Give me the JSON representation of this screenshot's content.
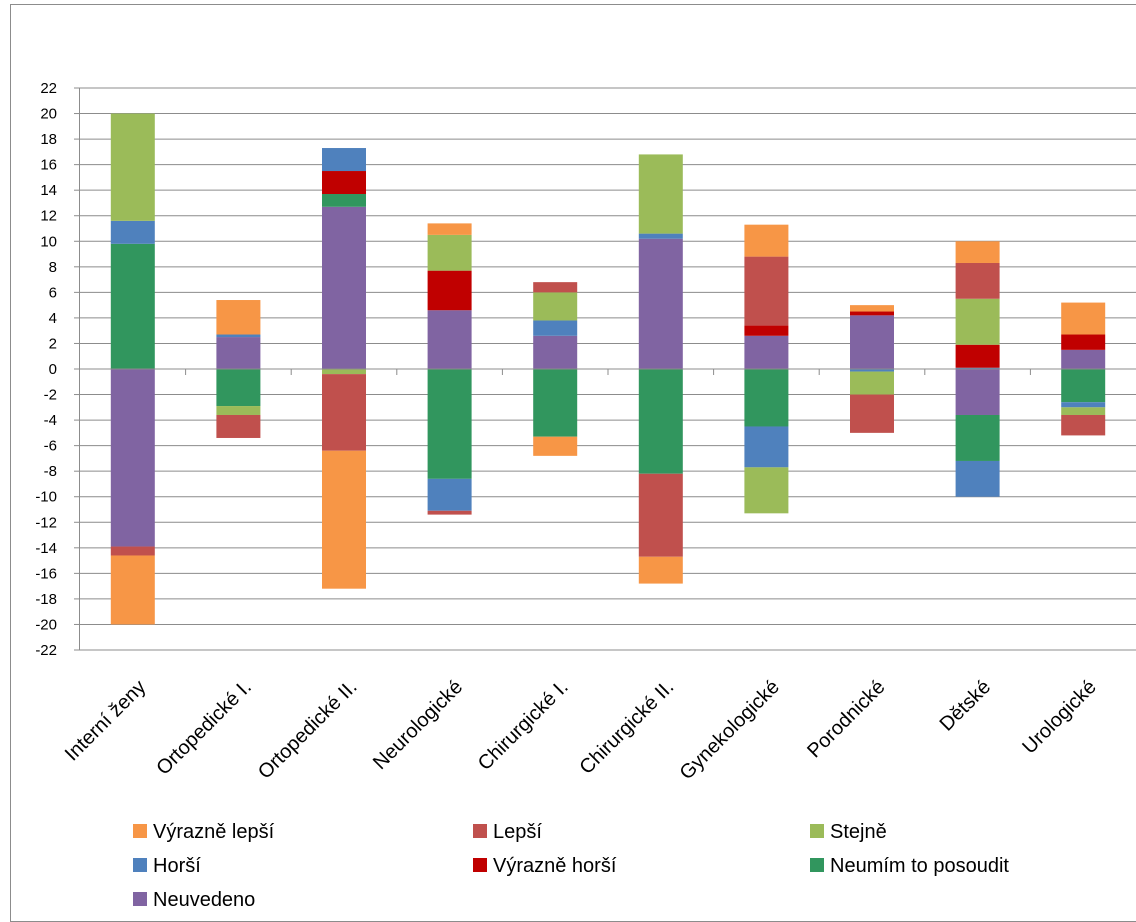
{
  "chart_data": {
    "type": "bar",
    "stacked": true,
    "diverging": true,
    "categories": [
      "Interní ženy",
      "Ortopedické I.",
      "Ortopedické II.",
      "Neurologické",
      "Chirurgické I.",
      "Chirurgické II.",
      "Gynekologické",
      "Porodnické",
      "Dětské",
      "Urologické"
    ],
    "ylim": [
      -22,
      22
    ],
    "yticks": [
      "22",
      "20",
      "18",
      "16",
      "14",
      "12",
      "10",
      "8",
      "6",
      "4",
      "2",
      "0",
      "-2",
      "-4",
      "-6",
      "-8",
      "-10",
      "-12",
      "-14",
      "-16",
      "-18",
      "-20",
      "-22"
    ],
    "grid": true,
    "legend_position": "bottom",
    "series": [
      {
        "name": "Výrazně lepší",
        "color": "#F79646"
      },
      {
        "name": "Lepší",
        "color": "#C0504D"
      },
      {
        "name": "Stejně",
        "color": "#9BBB59"
      },
      {
        "name": "Horší",
        "color": "#4F81BD"
      },
      {
        "name": "Výrazně horší",
        "color": "#C00000"
      },
      {
        "name": "Neumím to posoudit",
        "color": "#31965E"
      },
      {
        "name": "Neuvedeno",
        "color": "#8064A2"
      }
    ],
    "bars": [
      {
        "positive": [
          [
            "Neumím to posoudit",
            9.8
          ],
          [
            "Horší",
            1.8
          ],
          [
            "Stejně",
            8.4
          ]
        ],
        "negative": [
          [
            "Neuvedeno",
            13.9
          ],
          [
            "Lepší",
            0.7
          ],
          [
            "Výrazně lepší",
            5.4
          ]
        ]
      },
      {
        "positive": [
          [
            "Neuvedeno",
            2.5
          ],
          [
            "Horší",
            0.2
          ],
          [
            "Výrazně lepší",
            2.7
          ]
        ],
        "negative": [
          [
            "Neumím to posoudit",
            2.9
          ],
          [
            "Stejně",
            0.7
          ],
          [
            "Lepší",
            1.8
          ]
        ]
      },
      {
        "positive": [
          [
            "Neuvedeno",
            12.7
          ],
          [
            "Neumím to posoudit",
            1.0
          ],
          [
            "Výrazně horší",
            1.8
          ],
          [
            "Horší",
            1.8
          ]
        ],
        "negative": [
          [
            "Stejně",
            0.4
          ],
          [
            "Lepší",
            6.0
          ],
          [
            "Výrazně lepší",
            10.8
          ]
        ]
      },
      {
        "positive": [
          [
            "Neuvedeno",
            4.6
          ],
          [
            "Výrazně horší",
            3.1
          ],
          [
            "Stejně",
            2.8
          ],
          [
            "Výrazně lepší",
            0.9
          ]
        ],
        "negative": [
          [
            "Neumím to posoudit",
            8.6
          ],
          [
            "Horší",
            2.5
          ],
          [
            "Lepší",
            0.3
          ]
        ]
      },
      {
        "positive": [
          [
            "Neuvedeno",
            2.6
          ],
          [
            "Horší",
            1.2
          ],
          [
            "Stejně",
            2.2
          ],
          [
            "Lepší",
            0.8
          ]
        ],
        "negative": [
          [
            "Neumím to posoudit",
            5.3
          ],
          [
            "Výrazně lepší",
            1.5
          ]
        ]
      },
      {
        "positive": [
          [
            "Neuvedeno",
            10.2
          ],
          [
            "Horší",
            0.4
          ],
          [
            "Stejně",
            6.2
          ]
        ],
        "negative": [
          [
            "Neumím to posoudit",
            8.2
          ],
          [
            "Lepší",
            6.5
          ],
          [
            "Výrazně lepší",
            2.1
          ]
        ]
      },
      {
        "positive": [
          [
            "Neuvedeno",
            2.6
          ],
          [
            "Výrazně horší",
            0.8
          ],
          [
            "Lepší",
            5.4
          ],
          [
            "Výrazně lepší",
            2.5
          ]
        ],
        "negative": [
          [
            "Neumím to posoudit",
            4.5
          ],
          [
            "Horší",
            3.2
          ],
          [
            "Stejně",
            3.6
          ]
        ]
      },
      {
        "positive": [
          [
            "Neuvedeno",
            4.2
          ],
          [
            "Výrazně horší",
            0.3
          ],
          [
            "Výrazně lepší",
            0.5
          ]
        ],
        "negative": [
          [
            "Horší",
            0.2
          ],
          [
            "Stejně",
            1.8
          ],
          [
            "Lepší",
            3.0
          ]
        ]
      },
      {
        "positive": [
          [
            "Horší",
            0.1
          ],
          [
            "Výrazně horší",
            1.8
          ],
          [
            "Stejně",
            3.6
          ],
          [
            "Lepší",
            2.8
          ],
          [
            "Výrazně lepší",
            1.7
          ]
        ],
        "negative": [
          [
            "Neuvedeno",
            3.6
          ],
          [
            "Neumím to posoudit",
            3.6
          ],
          [
            "Horší",
            2.8
          ]
        ]
      },
      {
        "positive": [
          [
            "Neuvedeno",
            1.5
          ],
          [
            "Výrazně horší",
            1.2
          ],
          [
            "Výrazně lepší",
            2.5
          ]
        ],
        "negative": [
          [
            "Neumím to posoudit",
            2.6
          ],
          [
            "Horší",
            0.4
          ],
          [
            "Stejně",
            0.6
          ],
          [
            "Lepší",
            1.6
          ]
        ]
      }
    ]
  }
}
